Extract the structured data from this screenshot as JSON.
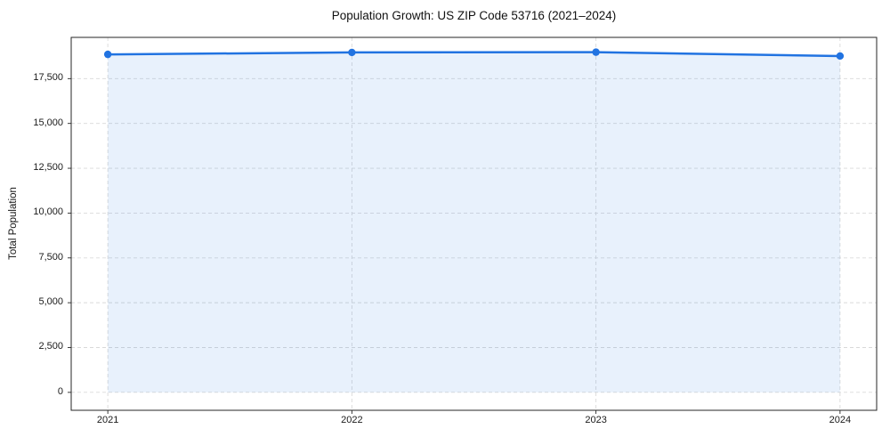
{
  "chart_data": {
    "type": "line",
    "title": "Population Growth: US ZIP Code 53716 (2021–2024)",
    "xlabel": "",
    "ylabel": "Total Population",
    "x": [
      2021,
      2022,
      2023,
      2024
    ],
    "series": [
      {
        "name": "Total Population",
        "values": [
          18850,
          18960,
          18975,
          18760
        ]
      }
    ],
    "xticks": [
      2021,
      2022,
      2023,
      2024
    ],
    "xtick_labels": [
      "2021",
      "2022",
      "2023",
      "2024"
    ],
    "yticks": [
      0,
      2500,
      5000,
      7500,
      10000,
      12500,
      15000,
      17500
    ],
    "ytick_labels": [
      "0",
      "2,500",
      "5,000",
      "7,500",
      "10,000",
      "12,500",
      "15,000",
      "17,500"
    ],
    "xlim": [
      2020.85,
      2024.15
    ],
    "ylim": [
      -1000,
      19800
    ],
    "grid": true,
    "legend": "none",
    "marker": "circle",
    "area_fill": true,
    "colors": {
      "line": "#2173e1",
      "marker": "#2173e1",
      "area_fill": "rgba(33,115,225,0.10)",
      "grid": "#d9d9d9",
      "spine": "#262626",
      "text": "#1a1a1a"
    }
  }
}
